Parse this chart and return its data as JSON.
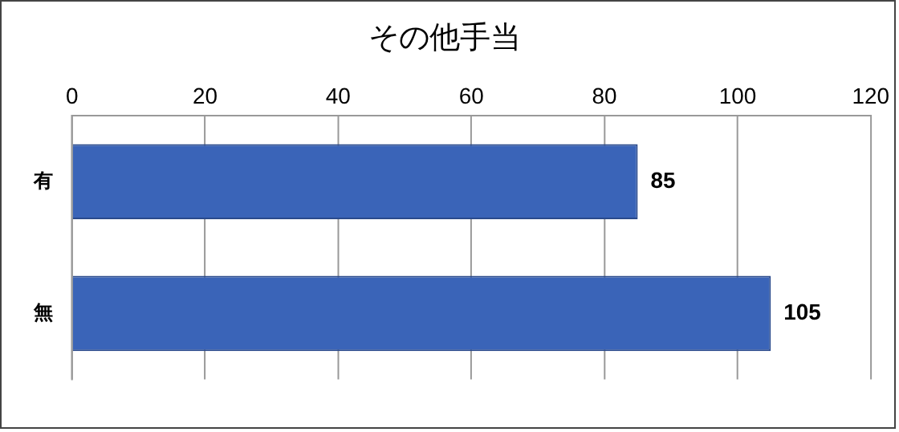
{
  "chart_data": {
    "type": "bar",
    "title": "その他手当",
    "orientation": "horizontal",
    "categories": [
      "有",
      "無"
    ],
    "values": [
      85,
      105
    ],
    "color": "#3a64b8",
    "xlim": [
      0,
      120
    ],
    "xticks": [
      0,
      20,
      40,
      60,
      80,
      100,
      120
    ],
    "grid": "x",
    "data_labels": true,
    "legend": false
  }
}
